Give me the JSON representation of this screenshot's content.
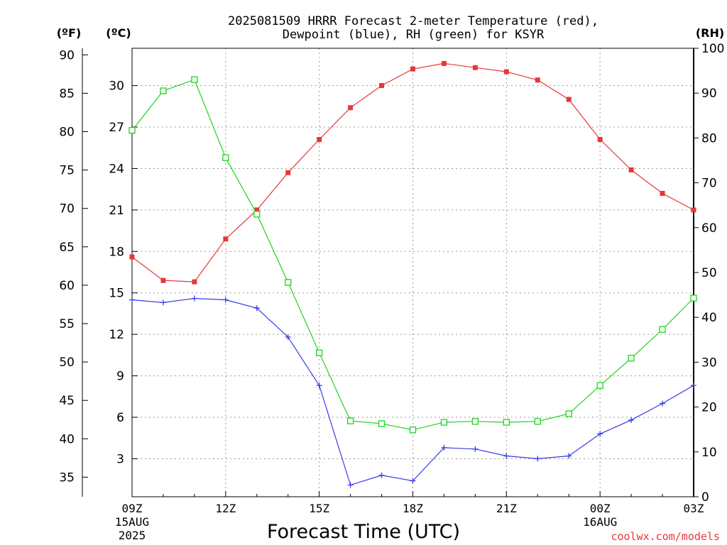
{
  "chart_data": {
    "type": "line",
    "title_line1": "2025081509 HRRR Forecast 2-meter Temperature (red),",
    "title_line2": "Dewpoint (blue), RH (green) for KSYR",
    "xlabel": "Forecast Time (UTC)",
    "credit": "coolwx.com/models",
    "unit_f": "(ºF)",
    "unit_c": "(ºC)",
    "unit_rh": "(RH)",
    "grid": true,
    "x_ticks": [
      {
        "hour": 0,
        "label": "09Z",
        "sub1": "15AUG",
        "sub2": "2025"
      },
      {
        "hour": 3,
        "label": "12Z",
        "sub1": "",
        "sub2": ""
      },
      {
        "hour": 6,
        "label": "15Z",
        "sub1": "",
        "sub2": ""
      },
      {
        "hour": 9,
        "label": "18Z",
        "sub1": "",
        "sub2": ""
      },
      {
        "hour": 12,
        "label": "21Z",
        "sub1": "",
        "sub2": ""
      },
      {
        "hour": 15,
        "label": "00Z",
        "sub1": "16AUG",
        "sub2": ""
      },
      {
        "hour": 18,
        "label": "03Z",
        "sub1": "",
        "sub2": ""
      }
    ],
    "f_ticks": [
      "35",
      "40",
      "45",
      "50",
      "55",
      "60",
      "65",
      "70",
      "75",
      "80",
      "85",
      "90"
    ],
    "c_ticks": [
      "3",
      "6",
      "9",
      "12",
      "15",
      "18",
      "21",
      "24",
      "27",
      "30"
    ],
    "rh_ticks": [
      "0",
      "10",
      "20",
      "30",
      "40",
      "50",
      "60",
      "70",
      "80",
      "90",
      "100"
    ],
    "c_range": [
      0.25,
      32.7
    ],
    "rh_range": [
      0,
      100
    ],
    "series": [
      {
        "key": "temperature",
        "color": "#e8363a",
        "marker": "filled-square",
        "unit": "C",
        "values": [
          17.6,
          15.9,
          15.8,
          18.9,
          21.0,
          23.7,
          26.1,
          28.4,
          30.0,
          31.2,
          31.6,
          31.3,
          31.0,
          30.4,
          29.0,
          26.1,
          23.9,
          22.2,
          21.0
        ]
      },
      {
        "key": "dewpoint",
        "color": "#3a3ae6",
        "marker": "plus",
        "unit": "C",
        "values": [
          14.5,
          14.3,
          14.6,
          14.5,
          13.9,
          11.8,
          8.3,
          1.1,
          1.8,
          1.4,
          3.8,
          3.7,
          3.2,
          3.0,
          3.2,
          4.8,
          5.8,
          7.0,
          8.3
        ]
      },
      {
        "key": "rh",
        "color": "#1ed41e",
        "marker": "open-square",
        "unit": "%",
        "values": [
          81.7,
          90.5,
          93.0,
          75.6,
          63.0,
          47.8,
          32.1,
          16.9,
          16.3,
          14.9,
          16.6,
          16.8,
          16.6,
          16.8,
          18.5,
          24.8,
          30.9,
          37.3,
          44.3
        ]
      }
    ]
  }
}
